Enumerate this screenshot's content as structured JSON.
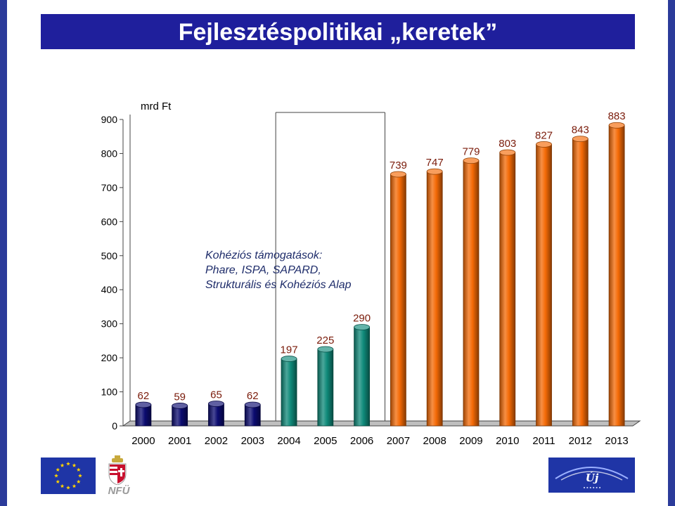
{
  "title": "Fejlesztéspolitikai „keretek”",
  "colors": {
    "frame": "#2b3b9a",
    "title_bg": "#1f1f9c",
    "bar_navy": "#0b0b70",
    "bar_teal": "#0f8a7a",
    "bar_orange": "#f46a06",
    "annotation_text": "#1e2c6a",
    "value_label": "#7a1b0a"
  },
  "chart_data": {
    "type": "bar",
    "unit_label": "mrd Ft",
    "categories": [
      "2000",
      "2001",
      "2002",
      "2003",
      "2004",
      "2005",
      "2006",
      "2007",
      "2008",
      "2009",
      "2010",
      "2011",
      "2012",
      "2013"
    ],
    "values": [
      62,
      59,
      65,
      62,
      197,
      225,
      290,
      739,
      747,
      779,
      803,
      827,
      843,
      883
    ],
    "bar_colors": [
      "#0b0b70",
      "#0b0b70",
      "#0b0b70",
      "#0b0b70",
      "#0f8a7a",
      "#0f8a7a",
      "#0f8a7a",
      "#f46a06",
      "#f46a06",
      "#f46a06",
      "#f46a06",
      "#f46a06",
      "#f46a06",
      "#f46a06"
    ],
    "ylim": [
      0,
      900
    ],
    "yticks": [
      "0",
      "100",
      "200",
      "300",
      "400",
      "500",
      "600",
      "700",
      "800",
      "900"
    ],
    "annotation": [
      "Kohéziós támogatások:",
      "Phare, ISPA, SAPARD,",
      "Strukturális és Kohéziós Alap"
    ],
    "grid": false,
    "legend": "none"
  },
  "logos": {
    "left_icon": "eu-flag-icon",
    "center_icon": "hungarian-coat-of-arms-icon",
    "center_text": "NFÜ",
    "right_icon": "uj-magyarorszag-logo-icon"
  }
}
